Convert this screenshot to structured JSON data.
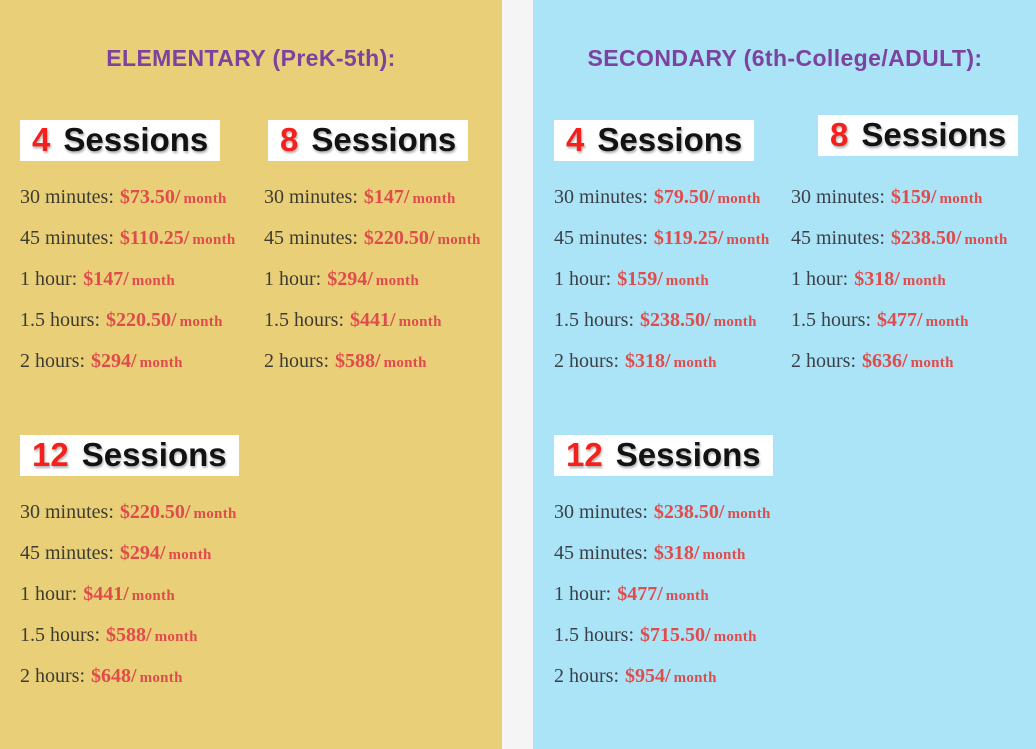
{
  "shared": {
    "separator": "/",
    "per_label": "month"
  },
  "colors": {
    "elementary_bg": "#e8cf78",
    "secondary_bg": "#abe3f7",
    "gap_bg": "#f4f5f4",
    "title_purple": "#7d42a0",
    "chip_bg": "#ffffff",
    "chip_number_red": "#f5201c",
    "chip_word_black": "#121212",
    "price_red": "#e04c4c",
    "elementary_label": "#3e3c31",
    "secondary_label": "#3b4149"
  },
  "panels": [
    {
      "title": "ELEMENTARY (PreK-5th):",
      "groups": [
        {
          "count": "4",
          "word": "Sessions",
          "rows": [
            {
              "duration": "30 minutes:",
              "price": "$73.50"
            },
            {
              "duration": "45 minutes:",
              "price": "$110.25"
            },
            {
              "duration": "1 hour:",
              "price": "$147"
            },
            {
              "duration": "1.5 hours:",
              "price": "$220.50"
            },
            {
              "duration": "2 hours:",
              "price": "$294"
            }
          ]
        },
        {
          "count": "8",
          "word": "Sessions",
          "rows": [
            {
              "duration": "30 minutes:",
              "price": "$147"
            },
            {
              "duration": "45 minutes:",
              "price": "$220.50"
            },
            {
              "duration": "1 hour:",
              "price": "$294"
            },
            {
              "duration": "1.5 hours:",
              "price": "$441"
            },
            {
              "duration": "2 hours:",
              "price": "$588"
            }
          ]
        },
        {
          "count": "12",
          "word": "Sessions",
          "rows": [
            {
              "duration": "30 minutes:",
              "price": "$220.50"
            },
            {
              "duration": "45 minutes:",
              "price": "$294"
            },
            {
              "duration": "1 hour:",
              "price": "$441"
            },
            {
              "duration": "1.5 hours:",
              "price": "$588"
            },
            {
              "duration": "2 hours:",
              "price": "$648"
            }
          ]
        }
      ]
    },
    {
      "title": "SECONDARY (6th-College/ADULT):",
      "groups": [
        {
          "count": "4",
          "word": "Sessions",
          "rows": [
            {
              "duration": "30 minutes:",
              "price": "$79.50"
            },
            {
              "duration": "45 minutes:",
              "price": "$119.25"
            },
            {
              "duration": "1 hour:",
              "price": "$159"
            },
            {
              "duration": "1.5 hours:",
              "price": "$238.50"
            },
            {
              "duration": "2 hours:",
              "price": "$318"
            }
          ]
        },
        {
          "count": "8",
          "word": "Sessions",
          "rows": [
            {
              "duration": "30 minutes:",
              "price": "$159"
            },
            {
              "duration": "45 minutes:",
              "price": "$238.50"
            },
            {
              "duration": "1 hour:",
              "price": "$318"
            },
            {
              "duration": "1.5 hours:",
              "price": "$477"
            },
            {
              "duration": "2 hours:",
              "price": "$636"
            }
          ]
        },
        {
          "count": "12",
          "word": "Sessions",
          "rows": [
            {
              "duration": "30 minutes:",
              "price": "$238.50"
            },
            {
              "duration": "45 minutes:",
              "price": "$318"
            },
            {
              "duration": "1 hour:",
              "price": "$477"
            },
            {
              "duration": "1.5 hours:",
              "price": "$715.50"
            },
            {
              "duration": "2 hours:",
              "price": "$954"
            }
          ]
        }
      ]
    }
  ]
}
